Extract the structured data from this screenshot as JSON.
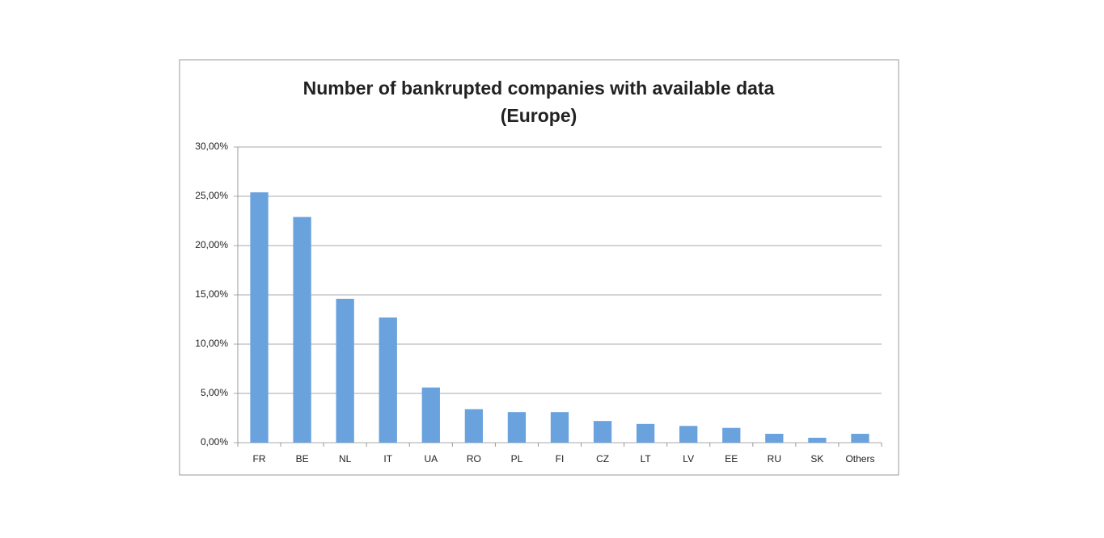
{
  "chart_data": {
    "type": "bar",
    "title": [
      "Number of bankrupted companies with available data",
      "(Europe)"
    ],
    "categories": [
      "FR",
      "BE",
      "NL",
      "IT",
      "UA",
      "RO",
      "PL",
      "FI",
      "CZ",
      "LT",
      "LV",
      "EE",
      "RU",
      "SK",
      "Others"
    ],
    "values": [
      25.4,
      22.9,
      14.6,
      12.7,
      5.6,
      3.4,
      3.1,
      3.1,
      2.2,
      1.9,
      1.7,
      1.5,
      0.9,
      0.5,
      0.9
    ],
    "color": "#6aa2de",
    "ylim": [
      0,
      30
    ],
    "yticks": [
      {
        "value": 0,
        "label": "0,00%"
      },
      {
        "value": 5,
        "label": "5,00%"
      },
      {
        "value": 10,
        "label": "10,00%"
      },
      {
        "value": 15,
        "label": "15,00%"
      },
      {
        "value": 20,
        "label": "20,00%"
      },
      {
        "value": 25,
        "label": "25,00%"
      },
      {
        "value": 30,
        "label": "30,00%"
      }
    ],
    "grid": true
  }
}
